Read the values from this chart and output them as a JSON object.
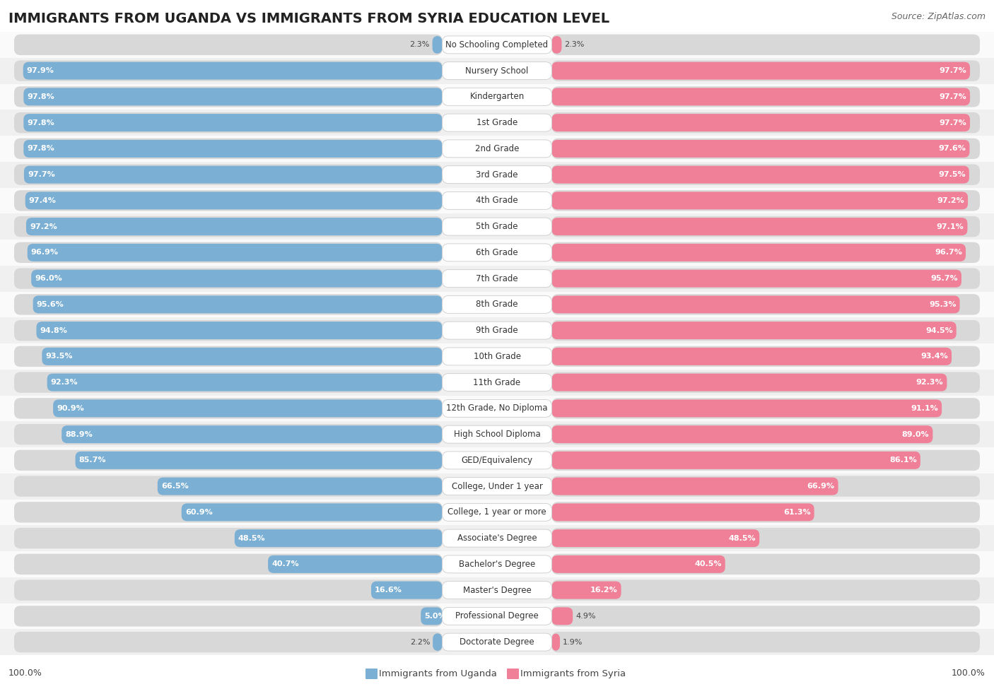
{
  "title": "IMMIGRANTS FROM UGANDA VS IMMIGRANTS FROM SYRIA EDUCATION LEVEL",
  "source": "Source: ZipAtlas.com",
  "categories": [
    "No Schooling Completed",
    "Nursery School",
    "Kindergarten",
    "1st Grade",
    "2nd Grade",
    "3rd Grade",
    "4th Grade",
    "5th Grade",
    "6th Grade",
    "7th Grade",
    "8th Grade",
    "9th Grade",
    "10th Grade",
    "11th Grade",
    "12th Grade, No Diploma",
    "High School Diploma",
    "GED/Equivalency",
    "College, Under 1 year",
    "College, 1 year or more",
    "Associate's Degree",
    "Bachelor's Degree",
    "Master's Degree",
    "Professional Degree",
    "Doctorate Degree"
  ],
  "uganda_values": [
    2.3,
    97.9,
    97.8,
    97.8,
    97.8,
    97.7,
    97.4,
    97.2,
    96.9,
    96.0,
    95.6,
    94.8,
    93.5,
    92.3,
    90.9,
    88.9,
    85.7,
    66.5,
    60.9,
    48.5,
    40.7,
    16.6,
    5.0,
    2.2
  ],
  "syria_values": [
    2.3,
    97.7,
    97.7,
    97.7,
    97.6,
    97.5,
    97.2,
    97.1,
    96.7,
    95.7,
    95.3,
    94.5,
    93.4,
    92.3,
    91.1,
    89.0,
    86.1,
    66.9,
    61.3,
    48.5,
    40.5,
    16.2,
    4.9,
    1.9
  ],
  "uganda_color": "#7BAFD4",
  "syria_color": "#F08098",
  "row_color_odd": "#f0f0f0",
  "row_color_even": "#fafafa",
  "bar_bg_color": "#d8d8d8",
  "legend_uganda": "Immigrants from Uganda",
  "legend_syria": "Immigrants from Syria",
  "axis_label_left": "100.0%",
  "axis_label_right": "100.0%",
  "title_fontsize": 14,
  "source_fontsize": 9,
  "label_fontsize": 8.5,
  "value_fontsize": 8.0
}
